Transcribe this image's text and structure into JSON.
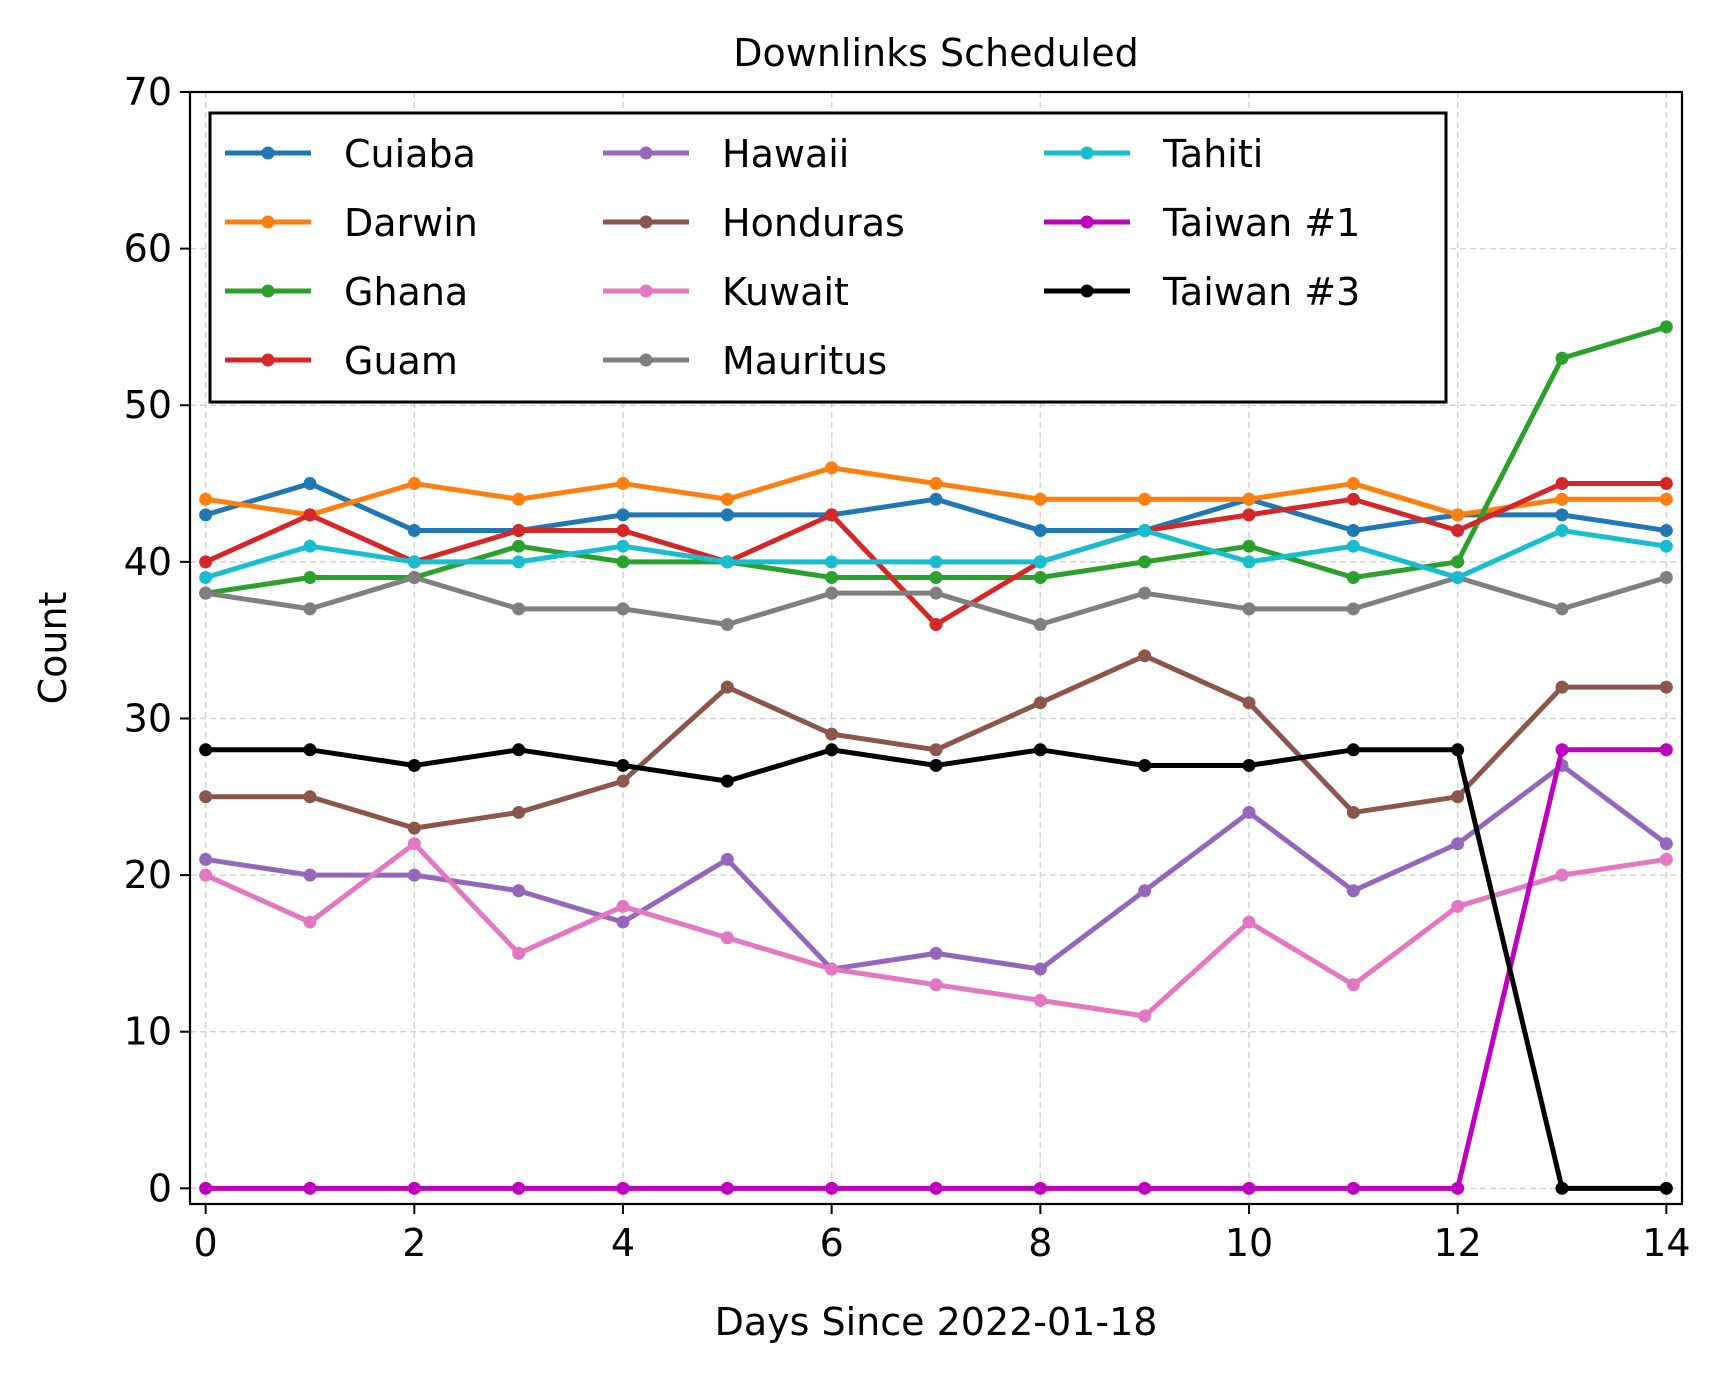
{
  "chart_data": {
    "type": "line",
    "title": "Downlinks Scheduled",
    "xlabel": "Days Since 2022-01-18",
    "ylabel": "Count",
    "xlim": [
      -0.15,
      14.15
    ],
    "ylim": [
      -1,
      70
    ],
    "xticks": [
      0,
      2,
      4,
      6,
      8,
      10,
      12,
      14
    ],
    "yticks": [
      0,
      10,
      20,
      30,
      40,
      50,
      60,
      70
    ],
    "grid": true,
    "legend_position": "top-left",
    "legend_columns": 3,
    "x": [
      0,
      1,
      2,
      3,
      4,
      5,
      6,
      7,
      8,
      9,
      10,
      11,
      12,
      13,
      14
    ],
    "series": [
      {
        "name": "Cuiaba",
        "color": "#1f77b4",
        "values": [
          43,
          45,
          42,
          42,
          43,
          43,
          43,
          44,
          42,
          42,
          44,
          42,
          43,
          43,
          42
        ]
      },
      {
        "name": "Darwin",
        "color": "#ff7f0e",
        "values": [
          44,
          43,
          45,
          44,
          45,
          44,
          46,
          45,
          44,
          44,
          44,
          45,
          43,
          44,
          44
        ]
      },
      {
        "name": "Ghana",
        "color": "#2ca02c",
        "values": [
          38,
          39,
          39,
          41,
          40,
          40,
          39,
          39,
          39,
          40,
          41,
          39,
          40,
          53,
          55
        ]
      },
      {
        "name": "Guam",
        "color": "#d62728",
        "values": [
          40,
          43,
          40,
          42,
          42,
          40,
          43,
          36,
          40,
          42,
          43,
          44,
          42,
          45,
          45
        ]
      },
      {
        "name": "Hawaii",
        "color": "#9467bd",
        "values": [
          21,
          20,
          20,
          19,
          17,
          21,
          14,
          15,
          14,
          19,
          24,
          19,
          22,
          27,
          22
        ]
      },
      {
        "name": "Honduras",
        "color": "#8c564b",
        "values": [
          25,
          25,
          23,
          24,
          26,
          32,
          29,
          28,
          31,
          34,
          31,
          24,
          25,
          32,
          32
        ]
      },
      {
        "name": "Kuwait",
        "color": "#e377c2",
        "values": [
          20,
          17,
          22,
          15,
          18,
          16,
          14,
          13,
          12,
          11,
          17,
          13,
          18,
          20,
          21
        ]
      },
      {
        "name": "Mauritus",
        "color": "#7f7f7f",
        "values": [
          38,
          37,
          39,
          37,
          37,
          36,
          38,
          38,
          36,
          38,
          37,
          37,
          39,
          37,
          39
        ]
      },
      {
        "name": "Tahiti",
        "color": "#17becf",
        "values": [
          39,
          41,
          40,
          40,
          41,
          40,
          40,
          40,
          40,
          42,
          40,
          41,
          39,
          42,
          41
        ]
      },
      {
        "name": "Taiwan #1",
        "color": "#bf00bf",
        "values": [
          0,
          0,
          0,
          0,
          0,
          0,
          0,
          0,
          0,
          0,
          0,
          0,
          0,
          28,
          28
        ]
      },
      {
        "name": "Taiwan #3",
        "color": "#000000",
        "values": [
          28,
          28,
          27,
          28,
          27,
          26,
          28,
          27,
          28,
          27,
          27,
          28,
          28,
          0,
          0
        ]
      }
    ]
  }
}
